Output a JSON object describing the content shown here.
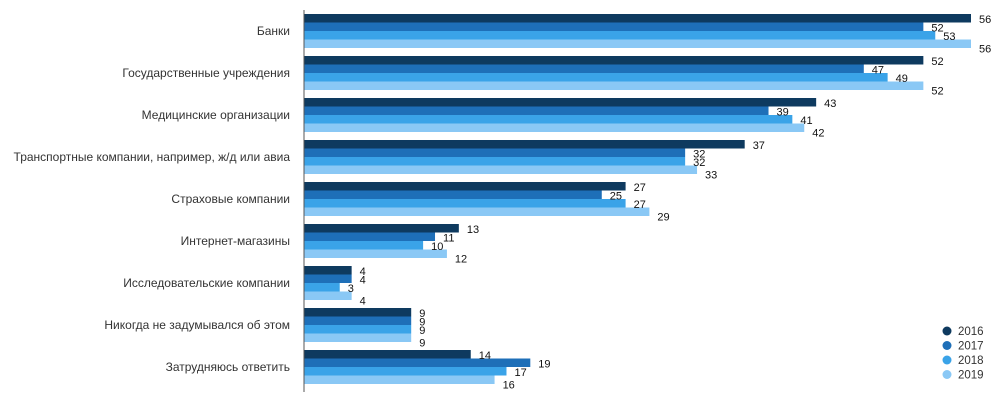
{
  "chart_data": {
    "type": "bar",
    "orientation": "horizontal",
    "categories": [
      "Банки",
      "Государственные учреждения",
      "Медицинские организации",
      "Транспортные компании, например, ж/д или авиа",
      "Страховые компании",
      "Интернет-магазины",
      "Исследовательские компании",
      "Никогда не задумывался об этом",
      "Затрудняюсь ответить"
    ],
    "series": [
      {
        "name": "2016",
        "color": "#0e3a5f",
        "values": [
          56,
          52,
          43,
          37,
          27,
          13,
          4,
          9,
          14
        ]
      },
      {
        "name": "2017",
        "color": "#1e6fb8",
        "values": [
          52,
          47,
          39,
          32,
          25,
          11,
          4,
          9,
          19
        ]
      },
      {
        "name": "2018",
        "color": "#3aa3e8",
        "values": [
          53,
          49,
          41,
          32,
          27,
          10,
          3,
          9,
          17
        ]
      },
      {
        "name": "2019",
        "color": "#8ac8f5",
        "values": [
          56,
          52,
          42,
          33,
          29,
          12,
          4,
          9,
          16
        ]
      }
    ],
    "xlim": [
      0,
      56
    ],
    "grid": false,
    "legend_position": "bottom-right"
  }
}
